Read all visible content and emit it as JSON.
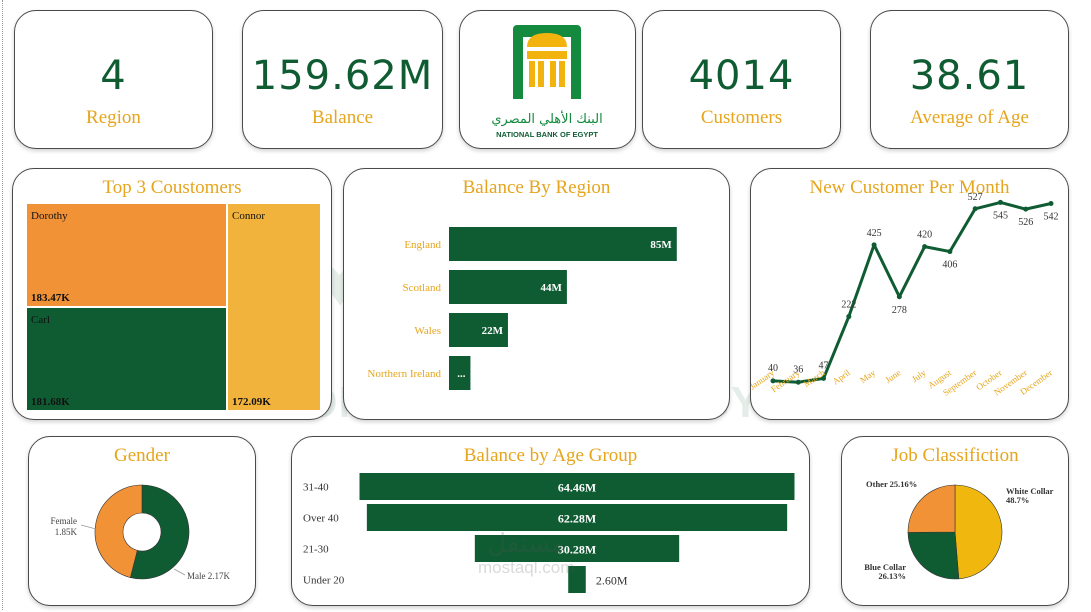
{
  "colors": {
    "green": "#0f5c33",
    "gold": "#e6a51c",
    "orange": "#f29237",
    "yellow": "#f2b33d",
    "accent_yellow": "#f0b80f"
  },
  "kpis": {
    "region": {
      "value": "4",
      "label": "Region"
    },
    "balance": {
      "value": "159.62M",
      "label": "Balance"
    },
    "customers": {
      "value": "4014",
      "label": "Customers"
    },
    "age": {
      "value": "38.61",
      "label": "Average of Age"
    }
  },
  "logo": {
    "arabic": "البنك الأهلي المصري",
    "english": "NATIONAL BANK OF EGYPT",
    "icon": "bank-logo-icon"
  },
  "watermark": {
    "text": "NATIONAL BANK OF EGYPT"
  },
  "brand_watermark": {
    "arabic": "مستقل",
    "latin": "mostaql.com"
  },
  "chart_data": [
    {
      "id": "top3",
      "type": "treemap",
      "title": "Top 3 Coustomers",
      "items": [
        {
          "name": "Dorothy",
          "value": 183.47,
          "label": "183.47K"
        },
        {
          "name": "Carl",
          "value": 181.68,
          "label": "181.68K"
        },
        {
          "name": "Connor",
          "value": 172.09,
          "label": "172.09K"
        }
      ]
    },
    {
      "id": "region",
      "type": "bar",
      "orientation": "horizontal",
      "title": "Balance By Region",
      "categories": [
        "England",
        "Scotland",
        "Wales",
        "Northern Ireland"
      ],
      "values": [
        85,
        44,
        22,
        8
      ],
      "labels": [
        "85M",
        "44M",
        "22M",
        "..."
      ],
      "xlim": [
        0,
        100
      ]
    },
    {
      "id": "monthly",
      "type": "line",
      "title": "New Customer Per Month",
      "categories": [
        "January",
        "February",
        "March",
        "April",
        "May",
        "June",
        "July",
        "August",
        "September",
        "October",
        "November",
        "December"
      ],
      "values": [
        40,
        36,
        47,
        222,
        425,
        278,
        420,
        406,
        527,
        545,
        526,
        542
      ],
      "ylim": [
        0,
        600
      ]
    },
    {
      "id": "gender",
      "type": "pie",
      "donut": true,
      "title": "Gender",
      "slices": [
        {
          "name": "Male",
          "value": 2.17,
          "label": "Male 2.17K"
        },
        {
          "name": "Female",
          "value": 1.85,
          "label": "Female",
          "sublabel": "1.85K"
        }
      ]
    },
    {
      "id": "age",
      "type": "bar",
      "orientation": "horizontal",
      "style": "funnel",
      "title": "Balance by Age Group",
      "categories": [
        "31-40",
        "Over 40",
        "21-30",
        "Under 20"
      ],
      "values": [
        64.46,
        62.28,
        30.28,
        2.6
      ],
      "labels": [
        "64.46M",
        "62.28M",
        "30.28M",
        "2.60M"
      ]
    },
    {
      "id": "job",
      "type": "pie",
      "title": "Job Classifiction",
      "slices": [
        {
          "name": "White Collar",
          "value": 48.7,
          "label": "White Collar",
          "sublabel": "48.7%"
        },
        {
          "name": "Blue Collar",
          "value": 26.13,
          "label": "Blue Collar",
          "sublabel": "26.13%"
        },
        {
          "name": "Other",
          "value": 25.16,
          "label": "Other 25.16%"
        }
      ]
    }
  ]
}
